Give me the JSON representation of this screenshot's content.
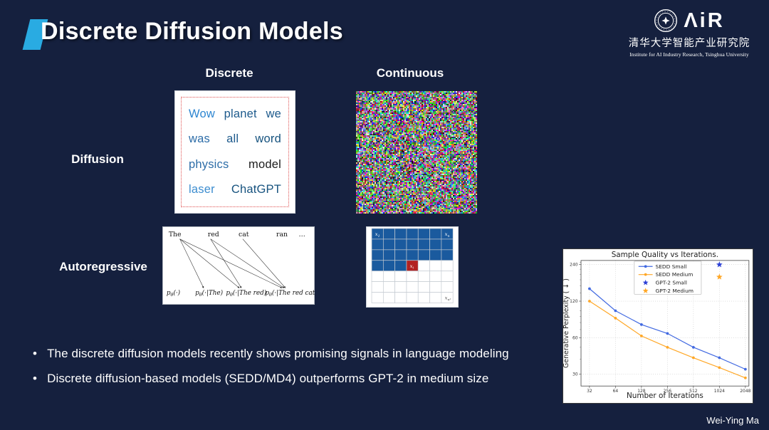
{
  "slide": {
    "title": "Discrete Diffusion Models",
    "author": "Wei-Ying Ma",
    "background_color": "#15203E",
    "accent_color": "#29ABE2"
  },
  "logo": {
    "air_text": "ΛiR",
    "cn": "清华大学智能产业研究院",
    "en": "Institute for AI Industry Research,  Tsinghua University"
  },
  "matrix": {
    "col_headers": [
      "Discrete",
      "Continuous"
    ],
    "row_headers": [
      "Diffusion",
      "Autoregressive"
    ]
  },
  "word_box": {
    "rows": [
      [
        {
          "t": "Wow",
          "c": "#2E86D1"
        },
        {
          "t": "planet",
          "c": "#1D5A8C"
        },
        {
          "t": "we",
          "c": "#1D5A8C"
        }
      ],
      [
        {
          "t": "was",
          "c": "#2D6DA8"
        },
        {
          "t": "all",
          "c": "#1D5A8C"
        },
        {
          "t": "word",
          "c": "#17537F"
        }
      ],
      [
        {
          "t": "physics",
          "c": "#2D6DA8"
        },
        {
          "t": "model",
          "c": "#1B1B1B"
        }
      ],
      [
        {
          "t": "laser",
          "c": "#3E8ED0"
        },
        {
          "t": "ChatGPT",
          "c": "#17537F"
        }
      ]
    ]
  },
  "ar_diagram": {
    "words": [
      "The",
      "red",
      "cat",
      "ran",
      "…"
    ],
    "dists": [
      {
        "pre": "p",
        "sub": "θ",
        "args": "(·)"
      },
      {
        "pre": "p",
        "sub": "θ",
        "args": "(·|The)"
      },
      {
        "pre": "p",
        "sub": "θ",
        "args": "(·|The red)"
      },
      {
        "pre": "p",
        "sub": "θ",
        "args": "(·|The red cat)"
      }
    ]
  },
  "grid_diagram": {
    "rows": 7,
    "cols": 7,
    "blue_color": "#1A5A9E",
    "red_color": "#B22222",
    "blue_full_rows": 3,
    "row4_blue_cells": 3,
    "red_cell": {
      "row": 3,
      "col": 3
    },
    "labels": [
      {
        "base": "x",
        "sub": "1",
        "row": 0,
        "col": 0,
        "color": "#ffffff"
      },
      {
        "base": "x",
        "sub": "n",
        "row": 0,
        "col": 6,
        "color": "#ffffff"
      },
      {
        "base": "x",
        "sub": "i",
        "row": 3,
        "col": 3,
        "color": "#ffffff"
      },
      {
        "base": "x",
        "sub": "n²",
        "row": 6,
        "col": 6,
        "color": "#555555"
      }
    ]
  },
  "bullets": [
    "The discrete diffusion models recently shows promising signals in language modeling",
    "Discrete diffusion-based models (SEDD/MD4) outperforms GPT-2 in medium size"
  ],
  "chart_data": {
    "type": "line",
    "title": "Sample Quality vs Iterations.",
    "xlabel": "Number of Iterations",
    "ylabel": "Generative Perplexity ( ↓ )",
    "x": [
      32,
      64,
      128,
      256,
      512,
      1024,
      2048
    ],
    "x_scale": "log2",
    "y_scale": "log2",
    "yticks": [
      30,
      60,
      120,
      240
    ],
    "ylim": [
      24,
      260
    ],
    "grid": "dotted",
    "legend_position": "upper center",
    "series": [
      {
        "name": "SEDD Small",
        "type": "line",
        "color": "#4169E1",
        "marker": "circle",
        "values": [
          152,
          100,
          77,
          65,
          50,
          41,
          33
        ]
      },
      {
        "name": "SEDD Medium",
        "type": "line",
        "color": "#FFA726",
        "marker": "circle",
        "values": [
          120,
          87,
          62,
          50,
          41,
          34,
          28
        ]
      },
      {
        "name": "GPT-2 Small",
        "type": "scatter",
        "color": "#2B3FD6",
        "marker": "star",
        "points": [
          [
            1024,
            240
          ]
        ]
      },
      {
        "name": "GPT-2 Medium",
        "type": "scatter",
        "color": "#FFA726",
        "marker": "star",
        "points": [
          [
            1024,
            190
          ]
        ]
      }
    ]
  }
}
